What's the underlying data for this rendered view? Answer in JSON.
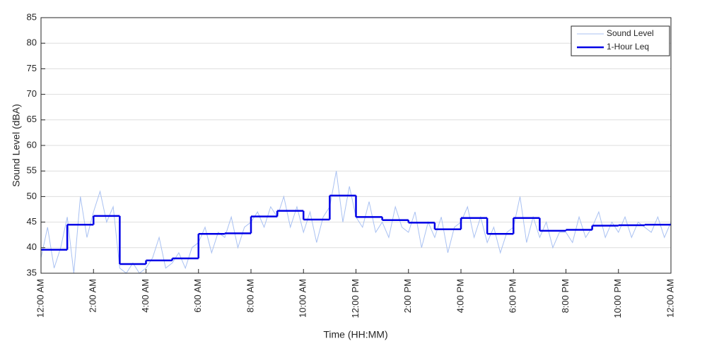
{
  "chart_data": {
    "type": "line",
    "xlabel": "Time (HH:MM)",
    "ylabel": "Sound Level (dBA)",
    "xlim": [
      0,
      24
    ],
    "ylim": [
      35,
      85
    ],
    "xticks": [
      {
        "value": 0,
        "label": "12:00 AM"
      },
      {
        "value": 2,
        "label": "2:00 AM"
      },
      {
        "value": 4,
        "label": "4:00 AM"
      },
      {
        "value": 6,
        "label": "6:00 AM"
      },
      {
        "value": 8,
        "label": "8:00 AM"
      },
      {
        "value": 10,
        "label": "10:00 AM"
      },
      {
        "value": 12,
        "label": "12:00 PM"
      },
      {
        "value": 14,
        "label": "2:00 PM"
      },
      {
        "value": 16,
        "label": "4:00 PM"
      },
      {
        "value": 18,
        "label": "6:00 PM"
      },
      {
        "value": 20,
        "label": "8:00 PM"
      },
      {
        "value": 22,
        "label": "10:00 PM"
      },
      {
        "value": 24,
        "label": "12:00 AM"
      }
    ],
    "yticks": [
      35,
      40,
      45,
      50,
      55,
      60,
      65,
      70,
      75,
      80,
      85
    ],
    "grid": true,
    "legend": "upper right",
    "series": [
      {
        "name": "Sound Level",
        "color": "#a9c1f2",
        "step": false,
        "x": [
          0,
          0.25,
          0.5,
          0.75,
          1,
          1.25,
          1.5,
          1.75,
          2,
          2.25,
          2.5,
          2.75,
          3,
          3.25,
          3.5,
          3.75,
          4,
          4.25,
          4.5,
          4.75,
          5,
          5.25,
          5.5,
          5.75,
          6,
          6.25,
          6.5,
          6.75,
          7,
          7.25,
          7.5,
          7.75,
          8,
          8.25,
          8.5,
          8.75,
          9,
          9.25,
          9.5,
          9.75,
          10,
          10.25,
          10.5,
          10.75,
          11,
          11.25,
          11.5,
          11.75,
          12,
          12.25,
          12.5,
          12.75,
          13,
          13.25,
          13.5,
          13.75,
          14,
          14.25,
          14.5,
          14.75,
          15,
          15.25,
          15.5,
          15.75,
          16,
          16.25,
          16.5,
          16.75,
          17,
          17.25,
          17.5,
          17.75,
          18,
          18.25,
          18.5,
          18.75,
          19,
          19.25,
          19.5,
          19.75,
          20,
          20.25,
          20.5,
          20.75,
          21,
          21.25,
          21.5,
          21.75,
          22,
          22.25,
          22.5,
          22.75,
          23,
          23.25,
          23.5,
          23.75,
          24
        ],
        "values": [
          38,
          44,
          36,
          40,
          46,
          35,
          50,
          42,
          47,
          51,
          45,
          48,
          36,
          35,
          37,
          35,
          36,
          38,
          42,
          36,
          37,
          39,
          36,
          40,
          41,
          44,
          39,
          43,
          42,
          46,
          40,
          44,
          45,
          47,
          44,
          48,
          46,
          50,
          44,
          48,
          43,
          47,
          41,
          46,
          48,
          55,
          45,
          52,
          46,
          44,
          49,
          43,
          45,
          42,
          48,
          44,
          43,
          47,
          40,
          45,
          42,
          46,
          39,
          44,
          45,
          48,
          42,
          46,
          41,
          44,
          39,
          43,
          44,
          50,
          41,
          46,
          42,
          45,
          40,
          43,
          43,
          41,
          46,
          42,
          44,
          47,
          42,
          45,
          43,
          46,
          42,
          45,
          44,
          43,
          46,
          42,
          45
        ]
      },
      {
        "name": "1-Hour Leq",
        "color": "#0000e6",
        "step": true,
        "x": [
          0,
          1,
          2,
          3,
          4,
          5,
          6,
          7,
          8,
          9,
          10,
          11,
          12,
          13,
          14,
          15,
          16,
          17,
          18,
          19,
          20,
          21,
          22,
          23
        ],
        "values": [
          39.6,
          44.5,
          46.2,
          36.8,
          37.5,
          37.9,
          42.7,
          42.8,
          46.1,
          47.2,
          45.5,
          50.2,
          46.0,
          45.4,
          44.9,
          43.6,
          45.8,
          42.7,
          45.8,
          43.3,
          43.5,
          44.3,
          44.4,
          44.5
        ]
      }
    ]
  }
}
